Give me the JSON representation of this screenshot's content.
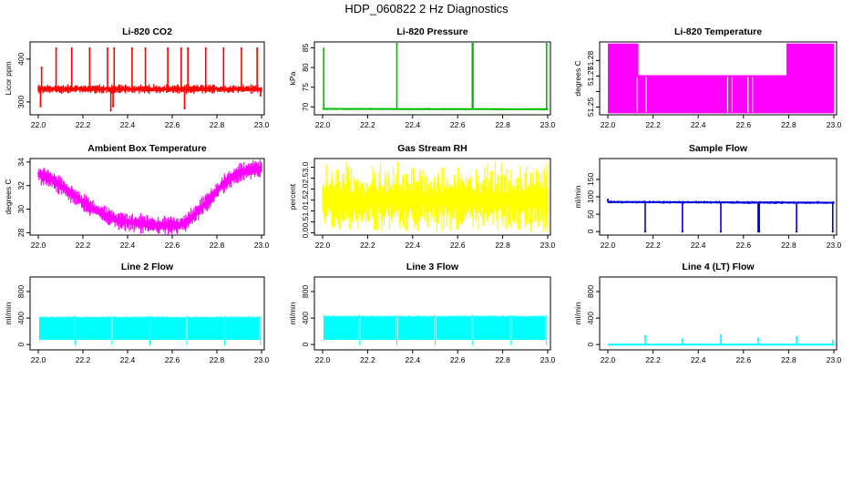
{
  "title": "HDP_060822 2 Hz Diagnostics",
  "colors": {
    "axis": "#000000",
    "text": "#000000"
  },
  "chart_data": [
    {
      "type": "line",
      "title": "Li-820 CO2",
      "ylabel": "Licor ppm",
      "color": "#ff0000",
      "xlim": [
        22.0,
        23.0
      ],
      "ylim": [
        270,
        440
      ],
      "xticks": [
        "22.0",
        "22.2",
        "22.4",
        "22.6",
        "22.8",
        "23.0"
      ],
      "yticks": [
        300,
        400
      ],
      "signal": {
        "kind": "band",
        "series": [
          {
            "name": "",
            "x": [
              22.0,
              23.0
            ],
            "y": [
              330,
              330
            ]
          }
        ],
        "noise": 6,
        "spikes": [
          {
            "x": 22.01,
            "y": 290
          },
          {
            "x": 22.015,
            "y": 380
          },
          {
            "x": 22.08,
            "y": 425
          },
          {
            "x": 22.15,
            "y": 425
          },
          {
            "x": 22.23,
            "y": 425
          },
          {
            "x": 22.31,
            "y": 425
          },
          {
            "x": 22.335,
            "y": 290
          },
          {
            "x": 22.34,
            "y": 425
          },
          {
            "x": 22.325,
            "y": 280
          },
          {
            "x": 22.42,
            "y": 425
          },
          {
            "x": 22.48,
            "y": 425
          },
          {
            "x": 22.58,
            "y": 425
          },
          {
            "x": 22.64,
            "y": 425
          },
          {
            "x": 22.655,
            "y": 285
          },
          {
            "x": 22.67,
            "y": 425
          },
          {
            "x": 22.75,
            "y": 425
          },
          {
            "x": 22.83,
            "y": 425
          },
          {
            "x": 22.91,
            "y": 425
          },
          {
            "x": 22.98,
            "y": 425
          },
          {
            "x": 22.995,
            "y": 315
          }
        ]
      }
    },
    {
      "type": "line",
      "title": "Li-820 Pressure",
      "ylabel": "kPa",
      "color": "#00bb00",
      "xlim": [
        22.0,
        23.0
      ],
      "ylim": [
        68,
        86.5
      ],
      "xticks": [
        "22.0",
        "22.2",
        "22.4",
        "22.6",
        "22.8",
        "23.0"
      ],
      "yticks": [
        70,
        75,
        80,
        85
      ],
      "signal": {
        "kind": "band",
        "series": [
          {
            "name": "",
            "x": [
              22.0,
              23.0
            ],
            "y": [
              69.5,
              69.4
            ]
          }
        ],
        "noise": 0.15,
        "spikes": [
          {
            "x": 22.005,
            "y": 84.8
          },
          {
            "x": 22.33,
            "y": 86
          },
          {
            "x": 22.665,
            "y": 86
          },
          {
            "x": 22.668,
            "y": 86
          },
          {
            "x": 22.995,
            "y": 86
          }
        ]
      }
    },
    {
      "type": "line",
      "title": "Li-820 Temperature",
      "ylabel": "degrees C",
      "color": "#ff00ff",
      "xlim": [
        22.0,
        23.0
      ],
      "ylim": [
        51.245,
        51.292
      ],
      "xticks": [
        "22.0",
        "22.2",
        "22.4",
        "22.6",
        "22.8",
        "23.0"
      ],
      "yticks": [
        51.25,
        51.26,
        51.27,
        51.28
      ],
      "ytick_labels": [
        "51.25",
        "",
        "51.27",
        "51.28"
      ],
      "signal": {
        "kind": "levels",
        "low": 51.246,
        "high_segments": [
          {
            "x0": 22.0,
            "x1": 22.135,
            "y": 51.291
          },
          {
            "x0": 22.135,
            "x1": 22.79,
            "y": 51.2705
          },
          {
            "x0": 22.79,
            "x1": 23.0,
            "y": 51.291
          }
        ],
        "gaps": [
          22.13,
          22.17,
          22.53,
          22.55,
          22.62,
          22.64
        ]
      }
    },
    {
      "type": "line",
      "title": "Ambient Box Temperature",
      "ylabel": "degrees C",
      "color": "#ff00ff",
      "xlim": [
        22.0,
        23.0
      ],
      "ylim": [
        27.8,
        34.3
      ],
      "xticks": [
        "22.0",
        "22.2",
        "22.4",
        "22.6",
        "22.8",
        "23.0"
      ],
      "yticks": [
        28,
        30,
        32,
        34
      ],
      "signal": {
        "kind": "band",
        "series": [
          {
            "name": "",
            "x": [
              22.0,
              22.05,
              22.1,
              22.15,
              22.2,
              22.25,
              22.3,
              22.35,
              22.4,
              22.45,
              22.5,
              22.55,
              22.6,
              22.65,
              22.7,
              22.75,
              22.8,
              22.85,
              22.9,
              22.95,
              23.0
            ],
            "y": [
              33.0,
              32.6,
              32.0,
              31.3,
              30.6,
              30.0,
              29.5,
              29.1,
              28.9,
              28.8,
              28.7,
              28.6,
              28.6,
              28.8,
              29.5,
              30.5,
              31.6,
              32.5,
              33.1,
              33.4,
              33.4
            ]
          }
        ],
        "noise": 0.45
      }
    },
    {
      "type": "line",
      "title": "Gas Stream RH",
      "ylabel": "percent",
      "color": "#ffff00",
      "xlim": [
        22.0,
        23.0
      ],
      "ylim": [
        -0.1,
        3.4
      ],
      "xticks": [
        "22.0",
        "22.2",
        "22.4",
        "22.6",
        "22.8",
        "23.0"
      ],
      "yticks": [
        0.0,
        0.5,
        1.0,
        1.5,
        2.0,
        2.5,
        3.0
      ],
      "ytick_labels": [
        "0.0",
        "0.5",
        "1.0",
        "1.5",
        "2.0",
        "2.5",
        "3.0"
      ],
      "signal": {
        "kind": "band",
        "series": [
          {
            "name": "",
            "x": [
              22.0,
              23.0
            ],
            "y": [
              1.5,
              1.5
            ]
          }
        ],
        "noise": 0.75,
        "extreme_low": 0.0,
        "extreme_high": 3.3
      }
    },
    {
      "type": "line",
      "title": "Sample Flow",
      "ylabel": "ml/min",
      "color": "#0000dd",
      "xlim": [
        22.0,
        23.0
      ],
      "ylim": [
        -10,
        210
      ],
      "xticks": [
        "22.0",
        "22.2",
        "22.4",
        "22.6",
        "22.8",
        "23.0"
      ],
      "yticks": [
        0,
        50,
        100,
        150
      ],
      "signal": {
        "kind": "band",
        "series": [
          {
            "name": "",
            "x": [
              22.0,
              23.0
            ],
            "y": [
              85,
              83
            ]
          }
        ],
        "noise": 2.5,
        "spikes": [
          {
            "x": 22.0,
            "y": 92
          },
          {
            "x": 22.165,
            "y": 0
          },
          {
            "x": 22.33,
            "y": 0
          },
          {
            "x": 22.5,
            "y": 0
          },
          {
            "x": 22.665,
            "y": 0
          },
          {
            "x": 22.67,
            "y": 0
          },
          {
            "x": 22.835,
            "y": 0
          },
          {
            "x": 22.995,
            "y": 0
          }
        ]
      }
    },
    {
      "type": "line",
      "title": "Line 2 Flow",
      "ylabel": "ml/min",
      "color": "#00ffff",
      "xlim": [
        22.0,
        23.0
      ],
      "ylim": [
        -80,
        1020
      ],
      "xticks": [
        "22.0",
        "22.2",
        "22.4",
        "22.6",
        "22.8",
        "23.0"
      ],
      "yticks": [
        0,
        400,
        800
      ],
      "signal": {
        "kind": "blocks",
        "low": 70,
        "high": 410,
        "breaks": [
          22.165,
          22.33,
          22.5,
          22.665,
          22.835,
          22.995
        ]
      }
    },
    {
      "type": "line",
      "title": "Line 3 Flow",
      "ylabel": "ml/min",
      "color": "#00ffff",
      "xlim": [
        22.0,
        23.0
      ],
      "ylim": [
        -80,
        1020
      ],
      "xticks": [
        "22.0",
        "22.2",
        "22.4",
        "22.6",
        "22.8",
        "23.0"
      ],
      "yticks": [
        0,
        400,
        800
      ],
      "signal": {
        "kind": "blocks",
        "low": 70,
        "high": 425,
        "breaks": [
          22.165,
          22.33,
          22.5,
          22.665,
          22.835,
          22.995
        ]
      }
    },
    {
      "type": "line",
      "title": "Line 4 (LT) Flow",
      "ylabel": "ml/min",
      "color": "#00ffff",
      "xlim": [
        22.0,
        23.0
      ],
      "ylim": [
        -80,
        1020
      ],
      "xticks": [
        "22.0",
        "22.2",
        "22.4",
        "22.6",
        "22.8",
        "23.0"
      ],
      "yticks": [
        0,
        400,
        800
      ],
      "signal": {
        "kind": "band",
        "series": [
          {
            "name": "",
            "x": [
              22.0,
              23.0
            ],
            "y": [
              0,
              0
            ]
          }
        ],
        "noise": 3,
        "spikes": [
          {
            "x": 22.165,
            "y": 130
          },
          {
            "x": 22.33,
            "y": 80
          },
          {
            "x": 22.5,
            "y": 140
          },
          {
            "x": 22.665,
            "y": 90
          },
          {
            "x": 22.835,
            "y": 110
          },
          {
            "x": 22.995,
            "y": 60
          }
        ]
      }
    }
  ]
}
